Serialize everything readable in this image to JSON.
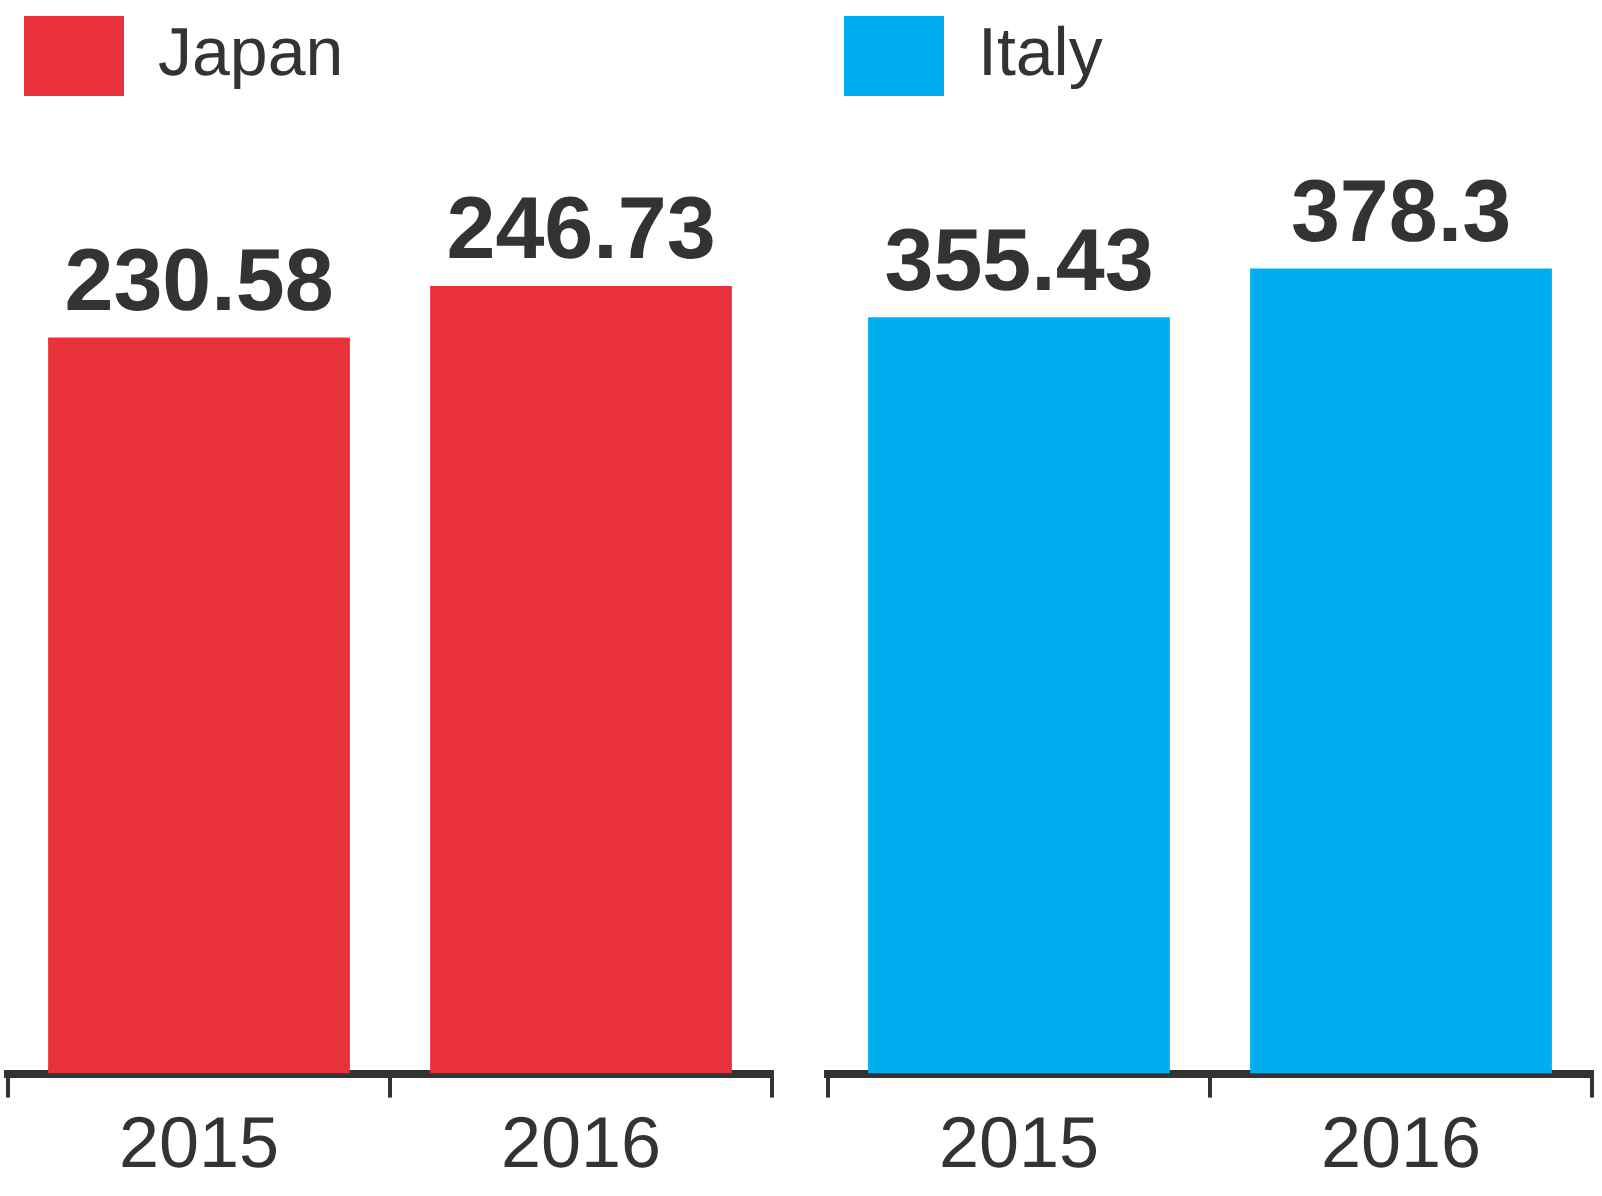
{
  "chart_data": [
    {
      "type": "bar",
      "categories": [
        "2015",
        "2016"
      ],
      "series": [
        {
          "name": "Japan",
          "color": "#e8313a",
          "values": [
            230.58,
            246.73
          ]
        }
      ],
      "tick_labels": "x",
      "data_labels": true,
      "legend": "top left",
      "grid": false
    },
    {
      "type": "bar",
      "categories": [
        "2015",
        "2016"
      ],
      "series": [
        {
          "name": "Italy",
          "color": "#00aeef",
          "values": [
            355.43,
            378.3
          ]
        }
      ],
      "tick_labels": "x",
      "data_labels": true,
      "legend": "top left",
      "grid": false
    }
  ]
}
